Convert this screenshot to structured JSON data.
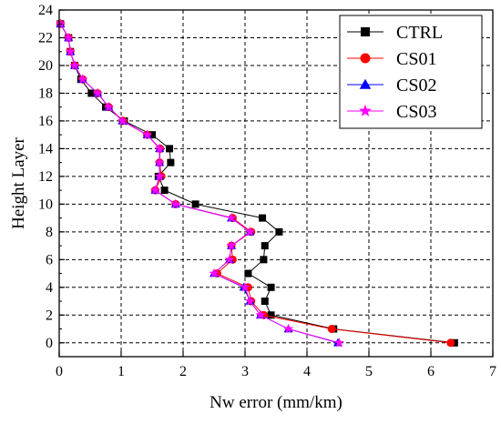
{
  "chart_data": {
    "type": "line",
    "xlabel": "Nw error (mm/km)",
    "ylabel": "Height Layer",
    "xlim": [
      0,
      7
    ],
    "ylim": [
      -1,
      24
    ],
    "xticks": [
      0,
      1,
      2,
      3,
      4,
      5,
      6,
      7
    ],
    "yticks": [
      0,
      2,
      4,
      6,
      8,
      10,
      12,
      14,
      16,
      18,
      20,
      22,
      24
    ],
    "grid": "dashed",
    "legend_position": "top-right",
    "y": [
      0,
      1,
      2,
      3,
      4,
      5,
      6,
      7,
      8,
      9,
      10,
      11,
      12,
      13,
      14,
      15,
      16,
      17,
      18,
      19,
      20,
      21,
      22,
      23
    ],
    "series": [
      {
        "name": "CTRL",
        "color": "#000000",
        "marker": "square",
        "x": [
          6.38,
          4.43,
          3.42,
          3.32,
          3.42,
          3.05,
          3.3,
          3.32,
          3.55,
          3.28,
          2.2,
          1.7,
          1.6,
          1.8,
          1.78,
          1.5,
          1.05,
          0.75,
          0.52,
          0.35,
          0.25,
          0.18,
          0.15,
          0.02
        ]
      },
      {
        "name": "CS01",
        "color": "#ff0000",
        "marker": "circle",
        "x": [
          6.32,
          4.4,
          3.3,
          3.1,
          3.05,
          2.55,
          2.8,
          2.78,
          3.1,
          2.8,
          1.88,
          1.55,
          1.65,
          1.62,
          1.63,
          1.42,
          1.03,
          0.8,
          0.62,
          0.38,
          0.25,
          0.18,
          0.15,
          0.02
        ]
      },
      {
        "name": "CS02",
        "color": "#0000ff",
        "marker": "triangle",
        "x": [
          4.5,
          3.7,
          3.25,
          3.08,
          2.98,
          2.5,
          2.75,
          2.78,
          3.08,
          2.78,
          1.88,
          1.55,
          1.62,
          1.62,
          1.62,
          1.42,
          1.02,
          0.8,
          0.62,
          0.38,
          0.25,
          0.18,
          0.15,
          0.02
        ]
      },
      {
        "name": "CS03",
        "color": "#ff00ff",
        "marker": "star",
        "x": [
          4.52,
          3.7,
          3.25,
          3.08,
          3.0,
          2.5,
          2.75,
          2.78,
          3.08,
          2.78,
          1.88,
          1.55,
          1.62,
          1.62,
          1.62,
          1.42,
          1.02,
          0.8,
          0.62,
          0.38,
          0.25,
          0.18,
          0.15,
          0.02
        ]
      }
    ]
  }
}
